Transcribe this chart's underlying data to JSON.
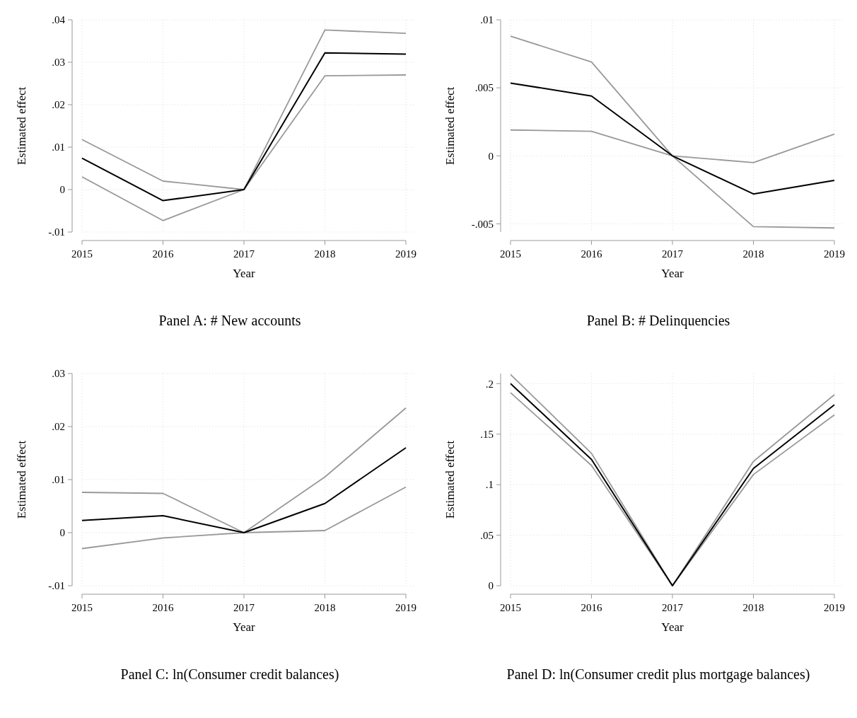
{
  "chart_data": [
    {
      "type": "line",
      "title": "Panel A: # New accounts",
      "xlabel": "Year",
      "ylabel": "Estimated effect",
      "x": [
        2015,
        2016,
        2017,
        2018,
        2019
      ],
      "xlim": [
        2015,
        2019
      ],
      "xticks": [
        2015,
        2016,
        2017,
        2018,
        2019
      ],
      "ylim": [
        -0.01,
        0.04
      ],
      "yticks": [
        {
          "value": -0.01,
          "label": "-.01"
        },
        {
          "value": 0,
          "label": "0"
        },
        {
          "value": 0.01,
          "label": ".01"
        },
        {
          "value": 0.02,
          "label": ".02"
        },
        {
          "value": 0.03,
          "label": ".03"
        },
        {
          "value": 0.04,
          "label": ".04"
        }
      ],
      "grid": true,
      "series": [
        {
          "color": "#999999",
          "values": [
            0.0118,
            0.002,
            0,
            0.0376,
            0.0368
          ]
        },
        {
          "color": "#999999",
          "values": [
            0.003,
            -0.0073,
            0,
            0.0268,
            0.027
          ]
        },
        {
          "color": "#000000",
          "values": [
            0.0074,
            -0.0026,
            0,
            0.0322,
            0.0319
          ]
        }
      ]
    },
    {
      "type": "line",
      "title": "Panel B: # Delinquencies",
      "xlabel": "Year",
      "ylabel": "Estimated effect",
      "x": [
        2015,
        2016,
        2017,
        2018,
        2019
      ],
      "xlim": [
        2015,
        2019
      ],
      "xticks": [
        2015,
        2016,
        2017,
        2018,
        2019
      ],
      "ylim": [
        -0.0056,
        0.01
      ],
      "yticks": [
        {
          "value": -0.005,
          "label": "-.005"
        },
        {
          "value": 0,
          "label": "0"
        },
        {
          "value": 0.005,
          "label": ".005"
        },
        {
          "value": 0.01,
          "label": ".01"
        }
      ],
      "grid": true,
      "series": [
        {
          "color": "#999999",
          "values": [
            0.0088,
            0.0069,
            0,
            -0.0005,
            0.0016
          ]
        },
        {
          "color": "#999999",
          "values": [
            0.0019,
            0.0018,
            0,
            -0.0052,
            -0.0053
          ]
        },
        {
          "color": "#000000",
          "values": [
            0.00535,
            0.0044,
            0,
            -0.0028,
            -0.0018
          ]
        }
      ]
    },
    {
      "type": "line",
      "title": "Panel C: ln(Consumer credit balances)",
      "xlabel": "Year",
      "ylabel": "Estimated effect",
      "x": [
        2015,
        2016,
        2017,
        2018,
        2019
      ],
      "xlim": [
        2015,
        2019
      ],
      "xticks": [
        2015,
        2016,
        2017,
        2018,
        2019
      ],
      "ylim": [
        -0.01,
        0.03
      ],
      "yticks": [
        {
          "value": -0.01,
          "label": "-.01"
        },
        {
          "value": 0,
          "label": "0"
        },
        {
          "value": 0.01,
          "label": ".01"
        },
        {
          "value": 0.02,
          "label": ".02"
        },
        {
          "value": 0.03,
          "label": ".03"
        }
      ],
      "grid": true,
      "series": [
        {
          "color": "#999999",
          "values": [
            0.0076,
            0.0074,
            0,
            0.0105,
            0.0235
          ]
        },
        {
          "color": "#999999",
          "values": [
            -0.003,
            -0.001,
            0,
            0.0004,
            0.0086
          ]
        },
        {
          "color": "#000000",
          "values": [
            0.0023,
            0.0032,
            0,
            0.0055,
            0.016
          ]
        }
      ]
    },
    {
      "type": "line",
      "title": "Panel D: ln(Consumer credit plus mortgage balances)",
      "xlabel": "Year",
      "ylabel": "Estimated effect",
      "x": [
        2015,
        2016,
        2017,
        2018,
        2019
      ],
      "xlim": [
        2015,
        2019
      ],
      "xticks": [
        2015,
        2016,
        2017,
        2018,
        2019
      ],
      "ylim": [
        0,
        0.21
      ],
      "yticks": [
        {
          "value": 0,
          "label": "0"
        },
        {
          "value": 0.05,
          "label": ".05"
        },
        {
          "value": 0.1,
          "label": ".1"
        },
        {
          "value": 0.15,
          "label": ".15"
        },
        {
          "value": 0.2,
          "label": ".2"
        }
      ],
      "grid": true,
      "series": [
        {
          "color": "#999999",
          "values": [
            0.209,
            0.131,
            0,
            0.123,
            0.189
          ]
        },
        {
          "color": "#999999",
          "values": [
            0.191,
            0.119,
            0,
            0.11,
            0.169
          ]
        },
        {
          "color": "#000000",
          "values": [
            0.2,
            0.125,
            0,
            0.116,
            0.179
          ]
        }
      ]
    }
  ]
}
